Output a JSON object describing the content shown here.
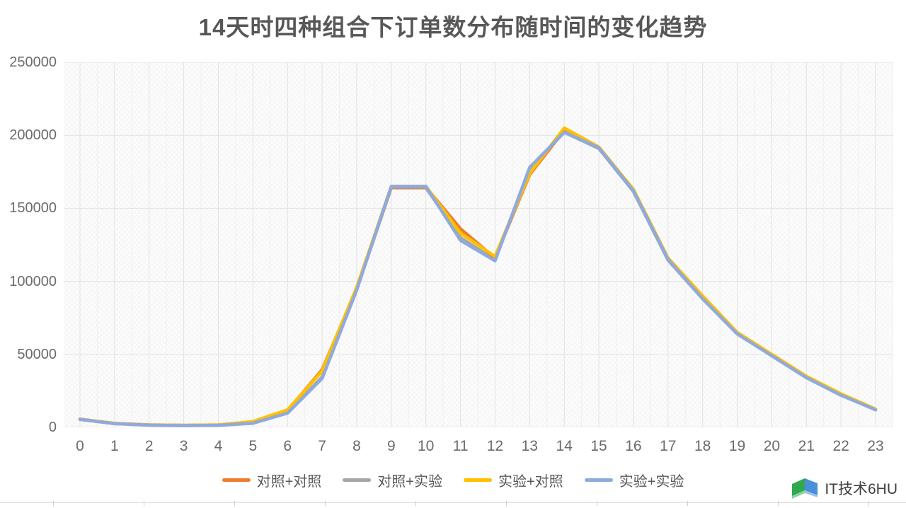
{
  "page": {
    "background": "#ffffff"
  },
  "chart_data": {
    "type": "line",
    "title": "14天时四种组合下订单数分布随时间的变化趋势",
    "xlabel": "",
    "ylabel": "",
    "categories": [
      "0",
      "1",
      "2",
      "3",
      "4",
      "5",
      "6",
      "7",
      "8",
      "9",
      "10",
      "11",
      "12",
      "13",
      "14",
      "15",
      "16",
      "17",
      "18",
      "19",
      "20",
      "21",
      "22",
      "23"
    ],
    "series": [
      {
        "name": "对照+对照",
        "color": "#ED7D31",
        "values": [
          5600,
          2700,
          1700,
          1400,
          1700,
          3800,
          11500,
          39500,
          95000,
          164500,
          164500,
          136000,
          116000,
          173000,
          203500,
          191500,
          162500,
          115500,
          89000,
          64500,
          49500,
          34500,
          22500,
          12200
        ]
      },
      {
        "name": "对照+实验",
        "color": "#A6A6A6",
        "values": [
          5400,
          2500,
          1500,
          1200,
          1400,
          2900,
          10000,
          34500,
          94500,
          164000,
          164000,
          130000,
          114500,
          177000,
          202000,
          191000,
          161500,
          114500,
          88000,
          64000,
          49000,
          34000,
          22000,
          12000
        ]
      },
      {
        "name": "实验+对照",
        "color": "#FFC000",
        "values": [
          5600,
          2700,
          1700,
          1400,
          1700,
          4000,
          12000,
          38500,
          96000,
          165000,
          165000,
          133000,
          117000,
          174000,
          205000,
          192000,
          163000,
          116000,
          90000,
          65000,
          50000,
          35000,
          23000,
          12500
        ]
      },
      {
        "name": "实验+实验",
        "color": "#8FAADC",
        "values": [
          5500,
          2500,
          1500,
          1200,
          1400,
          2800,
          9700,
          33500,
          94000,
          165000,
          165000,
          128000,
          114000,
          178000,
          202000,
          191500,
          162000,
          115000,
          88000,
          64000,
          49000,
          34000,
          22000,
          12000
        ]
      }
    ],
    "draw_order": [
      1,
      0,
      2,
      3
    ],
    "ylim": [
      0,
      250000
    ],
    "yticks": [
      0,
      50000,
      100000,
      150000,
      200000,
      250000
    ],
    "grid": true,
    "gridline_color": "#e2e2e2",
    "minor_gridline_color": "#f0f0f0",
    "axis_label_color": "#6b6b6b",
    "legend_position": "bottom"
  },
  "footer": {
    "brand": "IT技术6HU",
    "logo_colors": {
      "green": "#2FA84F",
      "light_green": "#8FD19E",
      "blue": "#4A8FD9",
      "light_blue": "#9DC3EC"
    }
  }
}
